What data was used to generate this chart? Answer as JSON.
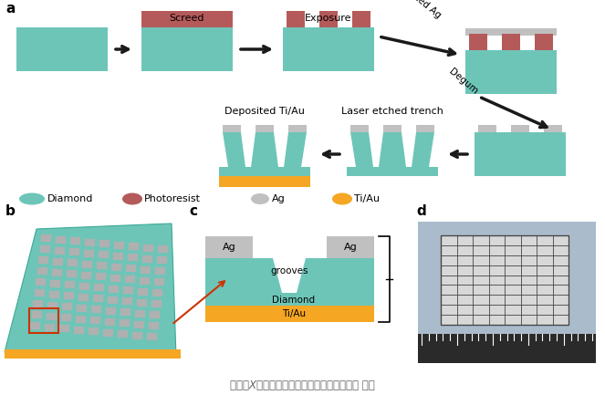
{
  "diamond_color": "#6DC5B8",
  "photoresist_color": "#B55A5A",
  "ag_color": "#C0C0C0",
  "tiau_color": "#F5A623",
  "bg_color": "#FFFFFF",
  "arrow_color": "#1A1A1A",
  "label_a": "a",
  "label_b": "b",
  "label_c": "c",
  "label_d": "d",
  "step1_label": "Screed",
  "step2_label": "Exposure",
  "step3_label": "Deposited Ag",
  "step4_label": "Degum",
  "step5_label": "Laser etched trench",
  "step6_label": "Deposited Ti/Au",
  "legend_diamond": "Diamond",
  "legend_photoresist": "Photoresist",
  "legend_ag": "Ag",
  "legend_tiau": "Ti/Au",
  "caption": "金刘石X射线探测器阵列的制作工艺，来源： 论文",
  "grooves_label": "grooves",
  "diamond_label": "Diamond",
  "tiau_label": "Ti/Au",
  "ag_label1": "Ag",
  "ag_label2": "Ag"
}
